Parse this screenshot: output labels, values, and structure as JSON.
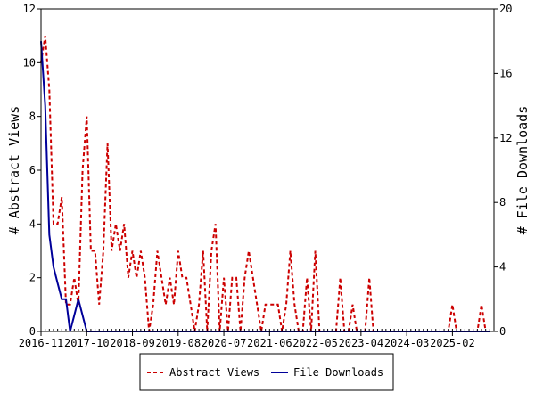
{
  "chart_data": {
    "type": "line",
    "ylabel": "# Abstract Views",
    "y2label": "# File Downloads",
    "ylim": [
      0,
      12
    ],
    "y2lim": [
      0,
      20
    ],
    "yticks": [
      "0",
      "2",
      "4",
      "6",
      "8",
      "10",
      "12"
    ],
    "y2ticks": [
      "0",
      "4",
      "8",
      "12",
      "16",
      "20"
    ],
    "xtick_labels": [
      "2016-11",
      "2017-10",
      "2018-09",
      "2019-08",
      "2020-07",
      "2021-06",
      "2022-05",
      "2023-04",
      "2024-03",
      "2025-02"
    ],
    "legend_position": "bottom-center",
    "grid": false,
    "series": [
      {
        "name": "Abstract Views",
        "axis": "left",
        "color": "#cc0000",
        "style": "dashed",
        "values": [
          10,
          11,
          9,
          4,
          4,
          5,
          1,
          1,
          2,
          1,
          6,
          8,
          3,
          3,
          1,
          3,
          7,
          3,
          4,
          3,
          4,
          2,
          3,
          2,
          3,
          2,
          0,
          1,
          3,
          2,
          1,
          2,
          1,
          3,
          2,
          2,
          1,
          0,
          1,
          3,
          0,
          3,
          4,
          0,
          2,
          0,
          2,
          2,
          0,
          2,
          3,
          2,
          1,
          0,
          1,
          1,
          1,
          1,
          0,
          1,
          3,
          1,
          0,
          0,
          2,
          0,
          3,
          0,
          0,
          0,
          0,
          0,
          2,
          0,
          0,
          1,
          0,
          0,
          0,
          2,
          0,
          0,
          0,
          0,
          0,
          0,
          0,
          0,
          0,
          0,
          0,
          0,
          0,
          0,
          0,
          0,
          0,
          0,
          0,
          1,
          0,
          0,
          0,
          0,
          0,
          0,
          1,
          0,
          0
        ]
      },
      {
        "name": "File Downloads",
        "axis": "right",
        "color": "#000099",
        "style": "solid",
        "values": [
          18,
          14,
          6,
          4,
          3,
          2,
          2,
          0,
          1,
          2,
          1,
          0,
          0,
          0,
          0,
          0,
          0,
          0,
          0,
          0,
          0,
          0,
          0,
          0,
          0,
          0,
          0,
          0,
          0,
          0,
          0,
          0,
          0,
          0,
          0,
          0,
          0,
          0,
          0,
          0,
          0,
          0,
          0,
          0,
          0,
          0,
          0,
          0,
          0,
          0,
          0,
          0,
          0,
          0,
          0,
          0,
          0,
          0,
          0,
          0,
          0,
          0,
          0,
          0,
          0,
          0,
          0,
          0,
          0,
          0,
          0,
          0,
          0,
          0,
          0,
          0,
          0,
          0,
          0,
          0,
          0,
          0,
          0,
          0,
          0,
          0,
          0,
          0,
          0,
          0,
          0,
          0,
          0,
          0,
          0,
          0,
          0,
          0,
          0,
          0,
          0,
          0,
          0,
          0,
          0,
          0,
          0,
          0,
          0
        ]
      }
    ]
  }
}
